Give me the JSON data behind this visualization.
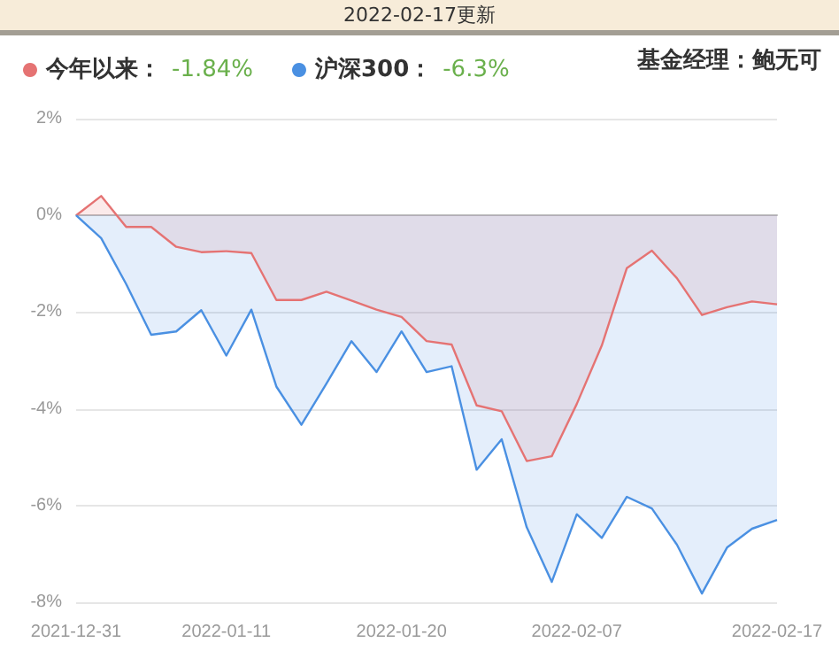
{
  "chart_data": {
    "type": "area",
    "title": "2022-02-17更新",
    "categories": [
      "2021-12-31",
      null,
      null,
      null,
      null,
      null,
      "2022-01-11",
      null,
      null,
      null,
      null,
      null,
      null,
      "2022-01-20",
      null,
      null,
      null,
      null,
      null,
      null,
      "2022-02-07",
      null,
      null,
      null,
      null,
      null,
      null,
      null,
      "2022-02-17"
    ],
    "series": [
      {
        "name": "今年以来：",
        "color": "#e57373",
        "values": [
          0,
          0.4,
          -0.24,
          -0.24,
          -0.65,
          -0.76,
          -0.74,
          -0.78,
          -1.75,
          -1.75,
          -1.58,
          -1.76,
          -1.95,
          -2.1,
          -2.6,
          -2.67,
          -3.93,
          -4.05,
          -5.08,
          -4.98,
          -3.9,
          -2.69,
          -1.09,
          -0.73,
          -1.3,
          -2.06,
          -1.9,
          -1.78,
          -1.84
        ]
      },
      {
        "name": "沪深300：",
        "color": "#4a90e2",
        "values": [
          0,
          -0.47,
          -1.42,
          -2.47,
          -2.4,
          -1.96,
          -2.9,
          -1.95,
          -3.54,
          -4.33,
          -3.48,
          -2.6,
          -3.24,
          -2.4,
          -3.24,
          -3.12,
          -5.26,
          -4.63,
          -6.45,
          -7.58,
          -6.18,
          -6.67,
          -5.82,
          -6.06,
          -6.81,
          -7.82,
          -6.87,
          -6.48,
          -6.3
        ]
      }
    ],
    "annotations": [
      "-1.84%",
      "-6.3%",
      "基金经理：鲍无可"
    ],
    "ylim": [
      -8,
      2
    ],
    "yticks": [
      {
        "value": -8,
        "label": "-8%"
      },
      {
        "value": -6,
        "label": "-6%"
      },
      {
        "value": -4,
        "label": "-4%"
      },
      {
        "value": -2,
        "label": "-2%"
      },
      {
        "value": 0,
        "label": "0%"
      },
      {
        "value": 2,
        "label": "2%"
      }
    ],
    "grid": "y",
    "legend": "top left",
    "marker": "none",
    "line_style": "solid"
  }
}
